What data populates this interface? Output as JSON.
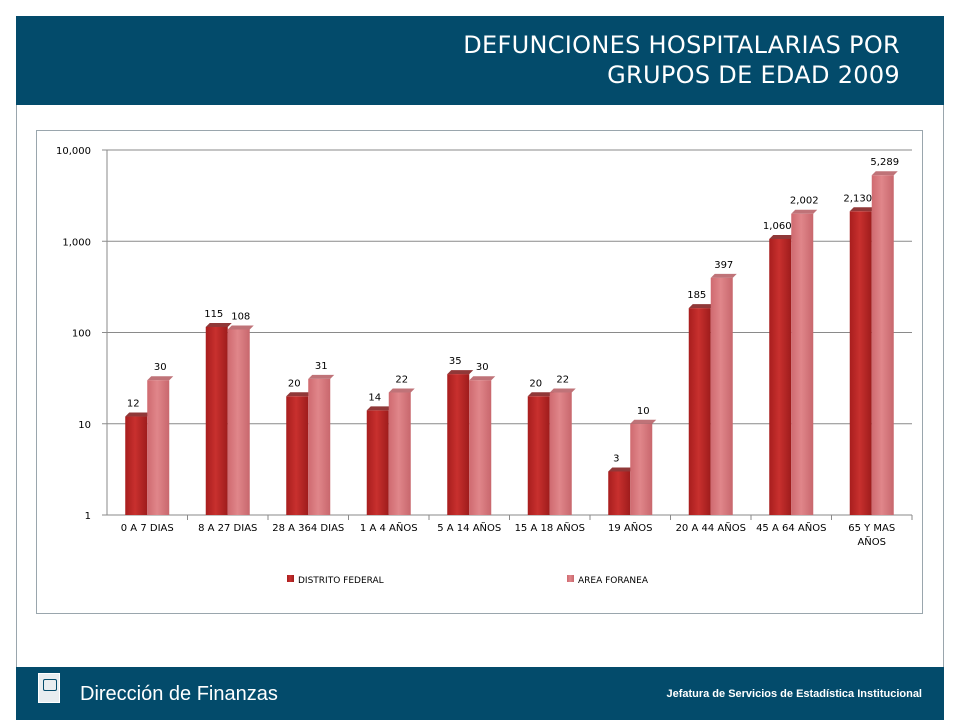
{
  "header": {
    "title_line1": "DEFUNCIONES  HOSPITALARIAS POR",
    "title_line2": "GRUPOS DE EDAD 2009"
  },
  "footer": {
    "left_text": "Dirección de Finanzas",
    "right_text": "Jefatura de Servicios de Estadística Institucional",
    "logo_icon": "institution-logo-icon"
  },
  "colors": {
    "brand": "#034b6b",
    "series_df": "#c8302e",
    "series_af": "#e0868a"
  },
  "chart_data": {
    "type": "bar",
    "scale": "log",
    "ylim": [
      1,
      10000
    ],
    "yticks": [
      "1",
      "10",
      "100",
      "1,000",
      "10,000"
    ],
    "yticks_values": [
      1,
      10,
      100,
      1000,
      10000
    ],
    "grid": true,
    "legend_position": "bottom",
    "categories": [
      [
        "0 A 7 DIAS"
      ],
      [
        "8 A 27 DIAS"
      ],
      [
        "28 A 364 DIAS"
      ],
      [
        "1 A 4 AÑOS"
      ],
      [
        "5 A 14 AÑOS"
      ],
      [
        "15 A 18 AÑOS"
      ],
      [
        "19 AÑOS"
      ],
      [
        "20 A 44 AÑOS"
      ],
      [
        "45 A 64 AÑOS"
      ],
      [
        "65 Y MAS",
        "AÑOS"
      ]
    ],
    "series": [
      {
        "name": "DISTRITO FEDERAL",
        "values": [
          12,
          115,
          20,
          14,
          35,
          20,
          3,
          185,
          1060,
          2130
        ],
        "labels": [
          "12",
          "115",
          "20",
          "14",
          "35",
          "20",
          "3",
          "185",
          "1,060",
          "2,130"
        ]
      },
      {
        "name": "AREA FORANEA",
        "values": [
          30,
          108,
          31,
          22,
          30,
          22,
          10,
          397,
          2002,
          5289
        ],
        "labels": [
          "30",
          "108",
          "31",
          "22",
          "30",
          "22",
          "10",
          "397",
          "2,002",
          "5,289"
        ]
      }
    ]
  }
}
